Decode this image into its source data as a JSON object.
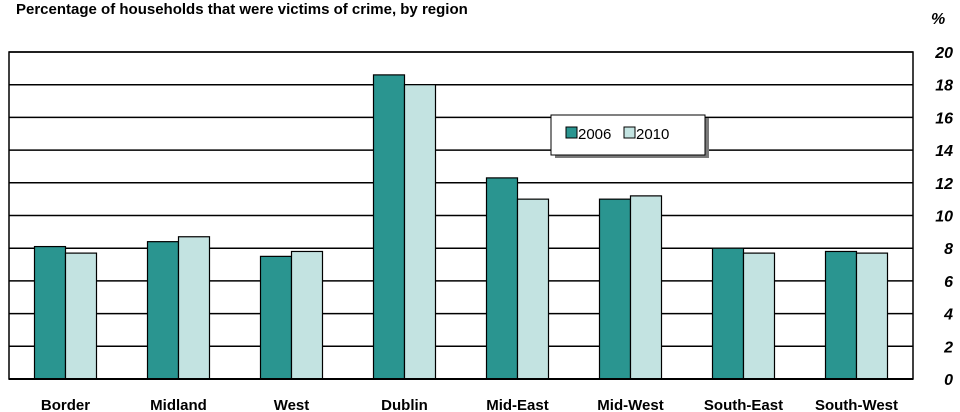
{
  "chart_data": {
    "type": "bar",
    "title": "Percentage of households that were victims of crime, by region",
    "unit_label": "%",
    "categories": [
      "Border",
      "Midland",
      "West",
      "Dublin",
      "Mid-East",
      "Mid-West",
      "South-East",
      "South-West"
    ],
    "series": [
      {
        "name": "2006",
        "values": [
          8.1,
          8.4,
          7.5,
          18.6,
          12.3,
          11.0,
          8.0,
          7.8
        ],
        "color": "#2a9590"
      },
      {
        "name": "2010",
        "values": [
          7.7,
          8.7,
          7.8,
          18.0,
          11.0,
          11.2,
          7.7,
          7.7
        ],
        "color": "#c3e3e1"
      }
    ],
    "ylim": [
      0,
      20
    ],
    "yticks": [
      "0",
      "2",
      "4",
      "6",
      "8",
      "10",
      "12",
      "14",
      "16",
      "18",
      "20"
    ],
    "grid": true,
    "legend_position": "top-right"
  }
}
